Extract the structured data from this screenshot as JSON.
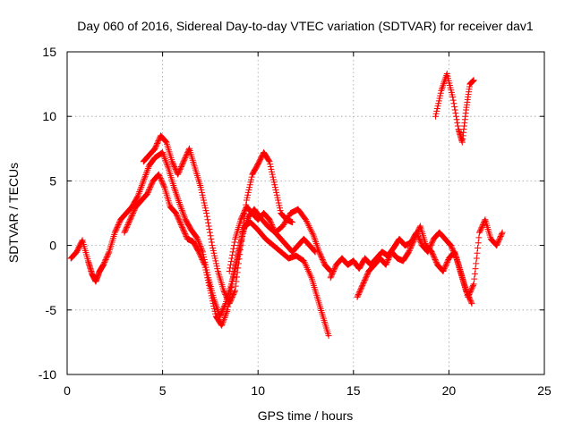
{
  "chart_data": {
    "type": "scatter",
    "title": "Day 060 of 2016, Sidereal Day-to-day VTEC variation (SDTVAR) for receiver dav1",
    "xlabel": "GPS time / hours",
    "ylabel": "SDTVAR / TECUs",
    "xlim": [
      0,
      25
    ],
    "ylim": [
      -10,
      15
    ],
    "xticks": [
      "0",
      "5",
      "10",
      "15",
      "20",
      "25"
    ],
    "yticks": [
      "-10",
      "-5",
      "0",
      "5",
      "10",
      "15"
    ],
    "grid": true,
    "marker": "+",
    "series": [
      {
        "name": "dav1",
        "color": "#ff0000",
        "tracks": [
          [
            [
              0.2,
              -1.0
            ],
            [
              0.5,
              -0.5
            ],
            [
              0.8,
              0.4
            ],
            [
              1.1,
              -1.2
            ],
            [
              1.3,
              -2.2
            ],
            [
              1.5,
              -2.8
            ],
            [
              1.7,
              -2.0
            ],
            [
              1.9,
              -1.5
            ],
            [
              2.2,
              -0.5
            ],
            [
              2.5,
              1.0
            ],
            [
              2.8,
              2.0
            ],
            [
              3.1,
              2.5
            ],
            [
              3.4,
              3.0
            ],
            [
              3.7,
              3.8
            ],
            [
              4.0,
              5.0
            ],
            [
              4.3,
              6.2
            ],
            [
              4.6,
              6.8
            ],
            [
              5.0,
              7.2
            ],
            [
              5.3,
              6.0
            ],
            [
              5.6,
              4.5
            ],
            [
              5.9,
              3.2
            ],
            [
              6.2,
              2.0
            ],
            [
              6.5,
              1.2
            ],
            [
              6.8,
              0.6
            ],
            [
              7.1,
              -0.5
            ],
            [
              7.4,
              -2.5
            ],
            [
              7.7,
              -4.2
            ],
            [
              8.0,
              -5.5
            ],
            [
              8.3,
              -4.5
            ],
            [
              8.6,
              -3.0
            ],
            [
              8.9,
              -1.0
            ],
            [
              9.2,
              1.0
            ],
            [
              9.5,
              2.2
            ],
            [
              9.8,
              2.8
            ],
            [
              10.1,
              2.2
            ],
            [
              10.5,
              1.5
            ],
            [
              10.9,
              1.0
            ],
            [
              11.3,
              1.5
            ],
            [
              11.7,
              2.5
            ],
            [
              12.1,
              2.8
            ],
            [
              12.5,
              2.0
            ],
            [
              12.9,
              0.8
            ],
            [
              13.2,
              -0.5
            ],
            [
              13.5,
              -1.5
            ],
            [
              13.8,
              -2.0
            ]
          ],
          [
            [
              4.0,
              6.5
            ],
            [
              4.3,
              7.0
            ],
            [
              4.6,
              7.5
            ],
            [
              4.9,
              8.5
            ],
            [
              5.2,
              8.0
            ],
            [
              5.5,
              6.5
            ],
            [
              5.8,
              5.5
            ],
            [
              6.1,
              6.5
            ],
            [
              6.4,
              7.5
            ],
            [
              6.7,
              6.0
            ],
            [
              7.0,
              4.5
            ],
            [
              7.3,
              2.5
            ],
            [
              7.6,
              0.0
            ],
            [
              7.9,
              -2.0
            ],
            [
              8.2,
              -3.5
            ],
            [
              8.5,
              -4.5
            ],
            [
              8.8,
              -3.5
            ],
            [
              9.1,
              0.0
            ],
            [
              9.4,
              3.5
            ],
            [
              9.7,
              5.5
            ],
            [
              10.0,
              6.3
            ],
            [
              10.3,
              7.2
            ],
            [
              10.6,
              6.5
            ],
            [
              10.9,
              4.5
            ],
            [
              11.2,
              2.5
            ],
            [
              11.5,
              2.0
            ],
            [
              11.8,
              1.8
            ]
          ],
          [
            [
              3.0,
              1.0
            ],
            [
              3.3,
              2.0
            ],
            [
              3.6,
              3.0
            ],
            [
              3.9,
              3.5
            ],
            [
              4.2,
              4.0
            ],
            [
              4.5,
              5.0
            ],
            [
              4.8,
              5.5
            ],
            [
              5.1,
              4.5
            ],
            [
              5.4,
              3.0
            ],
            [
              5.7,
              2.5
            ],
            [
              6.0,
              1.5
            ],
            [
              6.3,
              0.5
            ],
            [
              6.6,
              0.3
            ],
            [
              6.9,
              -0.5
            ],
            [
              7.2,
              -1.5
            ],
            [
              7.5,
              -3.5
            ],
            [
              7.8,
              -5.5
            ],
            [
              8.1,
              -6.2
            ],
            [
              8.4,
              -5.0
            ],
            [
              8.7,
              -2.5
            ],
            [
              9.0,
              -0.5
            ],
            [
              9.3,
              1.5
            ],
            [
              9.6,
              1.8
            ],
            [
              10.0,
              1.2
            ],
            [
              10.4,
              0.5
            ],
            [
              10.8,
              0.0
            ],
            [
              11.2,
              -0.5
            ],
            [
              11.6,
              -1.0
            ],
            [
              12.0,
              -0.8
            ],
            [
              12.4,
              -1.2
            ],
            [
              12.8,
              -2.5
            ],
            [
              13.1,
              -4.0
            ],
            [
              13.4,
              -5.5
            ],
            [
              13.7,
              -7.0
            ]
          ],
          [
            [
              8.5,
              -2.0
            ],
            [
              8.8,
              0.5
            ],
            [
              9.1,
              2.0
            ],
            [
              9.4,
              3.0
            ],
            [
              9.7,
              2.5
            ],
            [
              10.0,
              2.0
            ],
            [
              10.3,
              2.5
            ],
            [
              10.6,
              2.0
            ],
            [
              10.9,
              1.0
            ],
            [
              11.2,
              0.5
            ],
            [
              11.5,
              0.0
            ],
            [
              11.8,
              -0.5
            ],
            [
              12.1,
              0.0
            ],
            [
              12.4,
              0.5
            ],
            [
              12.7,
              0.0
            ],
            [
              13.0,
              -0.5
            ]
          ],
          [
            [
              13.8,
              -2.5
            ],
            [
              14.1,
              -1.5
            ],
            [
              14.4,
              -1.0
            ],
            [
              14.7,
              -1.5
            ],
            [
              15.0,
              -1.2
            ],
            [
              15.3,
              -1.8
            ],
            [
              15.6,
              -1.0
            ],
            [
              15.9,
              -1.5
            ],
            [
              16.2,
              -1.0
            ],
            [
              16.5,
              -0.5
            ],
            [
              16.8,
              -0.8
            ],
            [
              17.1,
              -0.2
            ],
            [
              17.4,
              0.5
            ],
            [
              17.7,
              0.0
            ],
            [
              18.0,
              0.2
            ],
            [
              18.3,
              1.0
            ],
            [
              18.6,
              0.0
            ],
            [
              18.9,
              -0.5
            ],
            [
              19.2,
              0.5
            ],
            [
              19.5,
              1.0
            ],
            [
              19.8,
              0.5
            ],
            [
              20.1,
              0.0
            ],
            [
              20.4,
              -1.0
            ],
            [
              20.7,
              -2.5
            ],
            [
              21.0,
              -4.0
            ],
            [
              21.3,
              -3.0
            ],
            [
              21.6,
              1.0
            ],
            [
              21.9,
              2.0
            ],
            [
              22.2,
              0.5
            ],
            [
              22.5,
              0.0
            ],
            [
              22.8,
              1.0
            ]
          ],
          [
            [
              15.2,
              -4.0
            ],
            [
              15.5,
              -3.0
            ],
            [
              15.8,
              -2.0
            ],
            [
              16.1,
              -1.5
            ],
            [
              16.4,
              -1.0
            ],
            [
              16.7,
              -1.5
            ],
            [
              17.0,
              -0.5
            ],
            [
              17.3,
              -1.0
            ],
            [
              17.6,
              -1.2
            ],
            [
              17.9,
              -0.5
            ],
            [
              18.2,
              0.5
            ],
            [
              18.5,
              1.5
            ],
            [
              18.8,
              0.0
            ],
            [
              19.1,
              -0.5
            ],
            [
              19.4,
              -1.5
            ],
            [
              19.7,
              -2.0
            ],
            [
              20.0,
              -1.0
            ],
            [
              20.3,
              -0.5
            ],
            [
              20.6,
              -2.0
            ],
            [
              20.9,
              -3.5
            ],
            [
              21.2,
              -4.5
            ]
          ],
          [
            [
              19.3,
              10.0
            ],
            [
              19.6,
              12.0
            ],
            [
              19.9,
              13.3
            ],
            [
              20.2,
              11.5
            ],
            [
              20.5,
              9.0
            ],
            [
              20.7,
              8.0
            ],
            [
              20.9,
              10.5
            ],
            [
              21.1,
              12.5
            ],
            [
              21.3,
              12.8
            ]
          ]
        ]
      }
    ]
  }
}
